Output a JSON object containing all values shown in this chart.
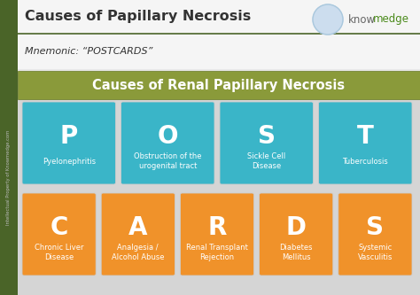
{
  "title": "Causes of Papillary Necrosis",
  "mnemonic": "Mnemonic: “POSTCARDS”",
  "subtitle": "Causes of Renal Papillary Necrosis",
  "bg_color": "#e8e8e8",
  "left_bar_color": "#4a6428",
  "olive_color": "#8a9a3a",
  "teal_color": "#3ab5c8",
  "orange_color": "#f0922a",
  "text_white": "#ffffff",
  "text_dark": "#333333",
  "text_dark2": "#555555",
  "know_green": "#4a8a1a",
  "row1": [
    {
      "letter": "P",
      "label": "Pyelonephritis"
    },
    {
      "letter": "O",
      "label": "Obstruction of the\nurogenital tract"
    },
    {
      "letter": "S",
      "label": "Sickle Cell\nDisease"
    },
    {
      "letter": "T",
      "label": "Tuberculosis"
    }
  ],
  "row2": [
    {
      "letter": "C",
      "label": "Chronic Liver\nDisease"
    },
    {
      "letter": "A",
      "label": "Analgesia /\nAlcohol Abuse"
    },
    {
      "letter": "R",
      "label": "Renal Transplant\nRejection"
    },
    {
      "letter": "D",
      "label": "Diabetes\nMellitus"
    },
    {
      "letter": "S",
      "label": "Systemic\nVasculitis"
    }
  ]
}
